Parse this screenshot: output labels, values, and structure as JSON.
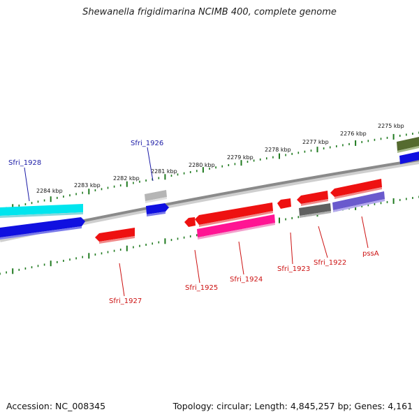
{
  "title": "Shewanella frigidimarina NCIMB 400, complete genome",
  "footer": {
    "accession": "Accession: NC_008345",
    "stats": "Topology: circular; Length: 4,845,257 bp; Genes: 4,161"
  },
  "colors": {
    "backbone": "#8a8a8a",
    "ticks": "#1f7a1f",
    "label_blue": "#1a1aa6",
    "label_red": "#cc1111"
  },
  "ticks": [
    {
      "label": "2284 kbp"
    },
    {
      "label": "2283 kbp"
    },
    {
      "label": "2282 kbp"
    },
    {
      "label": "2281 kbp"
    },
    {
      "label": "2280 kbp"
    },
    {
      "label": "2279 kbp"
    },
    {
      "label": "2278 kbp"
    },
    {
      "label": "2277 kbp"
    },
    {
      "label": "2276 kbp"
    },
    {
      "label": "2275 kbp"
    }
  ],
  "genes": [
    {
      "name": "Sfri_1928",
      "strand": "+",
      "color": "#1010e0"
    },
    {
      "name": "Sfri_1926",
      "strand": "+",
      "color": "#1010e0"
    },
    {
      "name": "Sfri_1927",
      "strand": "-",
      "color": "#ee1111"
    },
    {
      "name": "Sfri_1925",
      "strand": "-",
      "color": "#ee1111"
    },
    {
      "name": "Sfri_1924",
      "strand": "-",
      "color": "#ee1111"
    },
    {
      "name": "Sfri_1923",
      "strand": "-",
      "color": "#ee1111"
    },
    {
      "name": "Sfri_1922",
      "strand": "-",
      "color": "#ee1111"
    },
    {
      "name": "pssA",
      "strand": "-",
      "color": "#ee1111"
    }
  ],
  "features": [
    {
      "kind": "cds-band",
      "color": "#00e5ee"
    },
    {
      "kind": "cds-band",
      "color": "#aaaaaa"
    },
    {
      "kind": "cds-band",
      "color": "#ff1493"
    },
    {
      "kind": "cds-band",
      "color": "#606060"
    },
    {
      "kind": "cds-band",
      "color": "#6a5acd"
    },
    {
      "kind": "cds-band",
      "color": "#556b2f"
    }
  ]
}
